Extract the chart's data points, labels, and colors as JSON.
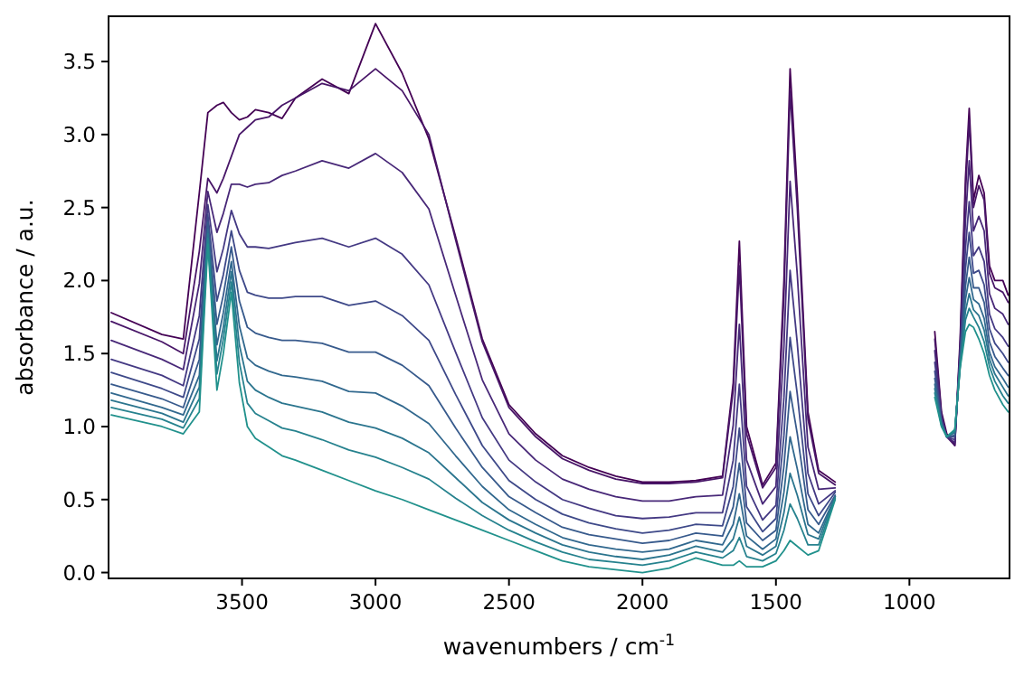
{
  "chart_data": {
    "type": "line",
    "xlabel": "wavenumbers / cm$^{-1}$",
    "ylabel": "absorbance / a.u.",
    "xlim": [
      4000,
      625
    ],
    "ylim": [
      -0.04,
      3.81
    ],
    "xticks": [
      3500,
      3000,
      2500,
      2000,
      1500,
      1000
    ],
    "yticks": [
      {
        "value": 0,
        "label": "0.0"
      },
      {
        "value": 0.5,
        "label": "0.5"
      },
      {
        "value": 1,
        "label": "1.0"
      },
      {
        "value": 1.5,
        "label": "1.5"
      },
      {
        "value": 2,
        "label": "2.0"
      },
      {
        "value": 2.5,
        "label": "2.5"
      },
      {
        "value": 3,
        "label": "3.0"
      },
      {
        "value": 3.5,
        "label": "3.5"
      }
    ],
    "x": [
      3990,
      3800,
      3720,
      3660,
      3628,
      3594,
      3570,
      3540,
      3510,
      3480,
      3450,
      3400,
      3350,
      3300,
      3200,
      3100,
      3000,
      2900,
      2800,
      2700,
      2600,
      2500,
      2400,
      2300,
      2200,
      2100,
      2000,
      1900,
      1800,
      1700,
      1660,
      1637,
      1610,
      1550,
      1500,
      1470,
      1447,
      1420,
      1380,
      1340,
      1278,
      1100,
      905,
      880,
      860,
      830,
      810,
      790,
      776,
      760,
      740,
      720,
      700,
      680,
      650,
      630
    ],
    "series": [
      {
        "color": "#440154",
        "values": [
          1.78,
          1.63,
          1.6,
          2.6,
          3.15,
          3.2,
          3.22,
          3.15,
          3.1,
          3.12,
          3.17,
          3.15,
          3.11,
          3.25,
          3.38,
          3.28,
          3.76,
          3.42,
          2.97,
          2.3,
          1.6,
          1.15,
          0.95,
          0.8,
          0.72,
          0.66,
          0.62,
          0.62,
          0.63,
          0.66,
          1.3,
          2.27,
          1.0,
          0.6,
          0.75,
          2.0,
          3.45,
          2.6,
          1.1,
          0.7,
          0.62,
          null,
          1.65,
          1.1,
          0.95,
          0.87,
          1.6,
          2.7,
          3.18,
          2.55,
          2.72,
          2.6,
          2.1,
          2.0,
          2.0,
          1.9
        ]
      },
      {
        "color": "#481668",
        "values": [
          1.72,
          1.58,
          1.5,
          2.2,
          2.7,
          2.6,
          2.7,
          2.85,
          3.0,
          3.05,
          3.1,
          3.12,
          3.2,
          3.25,
          3.35,
          3.3,
          3.45,
          3.3,
          3.0,
          2.28,
          1.58,
          1.13,
          0.93,
          0.78,
          0.7,
          0.64,
          0.61,
          0.61,
          0.62,
          0.65,
          1.25,
          2.1,
          0.95,
          0.58,
          0.72,
          1.9,
          3.3,
          2.5,
          1.05,
          0.68,
          0.6,
          null,
          1.6,
          1.08,
          0.93,
          0.87,
          1.55,
          2.6,
          3.1,
          2.5,
          2.65,
          2.55,
          2.05,
          1.95,
          1.92,
          1.85
        ]
      },
      {
        "color": "#482878",
        "values": [
          1.59,
          1.46,
          1.39,
          1.98,
          2.61,
          2.33,
          2.46,
          2.66,
          2.66,
          2.64,
          2.66,
          2.67,
          2.72,
          2.75,
          2.82,
          2.77,
          2.87,
          2.74,
          2.49,
          1.9,
          1.32,
          0.95,
          0.77,
          0.64,
          0.57,
          0.52,
          0.49,
          0.49,
          0.52,
          0.53,
          1.01,
          1.7,
          0.77,
          0.47,
          0.59,
          1.55,
          2.68,
          2.04,
          0.86,
          0.57,
          0.58,
          null,
          1.52,
          1.06,
          0.93,
          0.89,
          1.52,
          2.41,
          2.82,
          2.34,
          2.44,
          2.34,
          1.91,
          1.81,
          1.77,
          1.7
        ]
      },
      {
        "color": "#443983",
        "values": [
          1.46,
          1.35,
          1.28,
          1.76,
          2.52,
          2.06,
          2.22,
          2.48,
          2.32,
          2.23,
          2.23,
          2.22,
          2.24,
          2.26,
          2.29,
          2.23,
          2.29,
          2.18,
          1.97,
          1.51,
          1.06,
          0.77,
          0.62,
          0.5,
          0.44,
          0.39,
          0.37,
          0.38,
          0.41,
          0.41,
          0.77,
          1.29,
          0.59,
          0.36,
          0.46,
          1.2,
          2.07,
          1.57,
          0.68,
          0.47,
          0.56,
          null,
          1.44,
          1.05,
          0.93,
          0.91,
          1.49,
          2.22,
          2.54,
          2.17,
          2.23,
          2.13,
          1.77,
          1.67,
          1.61,
          1.55
        ]
      },
      {
        "color": "#3e4989",
        "values": [
          1.37,
          1.26,
          1.2,
          1.6,
          2.45,
          1.86,
          2.04,
          2.34,
          2.07,
          1.92,
          1.9,
          1.88,
          1.88,
          1.89,
          1.89,
          1.83,
          1.86,
          1.76,
          1.59,
          1.22,
          0.87,
          0.63,
          0.5,
          0.4,
          0.34,
          0.3,
          0.27,
          0.29,
          0.33,
          0.32,
          0.59,
          0.99,
          0.45,
          0.28,
          0.37,
          0.94,
          1.61,
          1.22,
          0.54,
          0.39,
          0.55,
          null,
          1.38,
          1.04,
          0.93,
          0.93,
          1.47,
          2.08,
          2.33,
          2.05,
          2.07,
          1.97,
          1.67,
          1.57,
          1.5,
          1.44
        ]
      },
      {
        "color": "#375a8c",
        "values": [
          1.29,
          1.19,
          1.13,
          1.46,
          2.4,
          1.7,
          1.9,
          2.23,
          1.86,
          1.68,
          1.64,
          1.61,
          1.59,
          1.59,
          1.57,
          1.51,
          1.51,
          1.42,
          1.28,
          0.99,
          0.72,
          0.52,
          0.41,
          0.31,
          0.26,
          0.23,
          0.2,
          0.22,
          0.27,
          0.25,
          0.45,
          0.75,
          0.34,
          0.22,
          0.29,
          0.73,
          1.24,
          0.95,
          0.43,
          0.33,
          0.53,
          null,
          1.33,
          1.03,
          0.93,
          0.94,
          1.45,
          1.96,
          2.16,
          1.95,
          1.95,
          1.85,
          1.58,
          1.48,
          1.4,
          1.35
        ]
      },
      {
        "color": "#31688e",
        "values": [
          1.23,
          1.13,
          1.08,
          1.35,
          2.35,
          1.56,
          1.78,
          2.13,
          1.69,
          1.47,
          1.42,
          1.38,
          1.35,
          1.34,
          1.31,
          1.24,
          1.23,
          1.14,
          1.02,
          0.8,
          0.59,
          0.43,
          0.33,
          0.24,
          0.19,
          0.16,
          0.14,
          0.16,
          0.22,
          0.19,
          0.33,
          0.54,
          0.25,
          0.16,
          0.23,
          0.55,
          0.93,
          0.71,
          0.33,
          0.27,
          0.52,
          null,
          1.29,
          1.02,
          0.93,
          0.96,
          1.44,
          1.87,
          2.02,
          1.87,
          1.84,
          1.74,
          1.51,
          1.41,
          1.33,
          1.27
        ]
      },
      {
        "color": "#2b758e",
        "values": [
          1.18,
          1.09,
          1.03,
          1.27,
          2.32,
          1.45,
          1.68,
          2.06,
          1.56,
          1.31,
          1.25,
          1.2,
          1.16,
          1.14,
          1.1,
          1.03,
          0.99,
          0.92,
          0.82,
          0.65,
          0.48,
          0.36,
          0.27,
          0.19,
          0.14,
          0.11,
          0.09,
          0.12,
          0.18,
          0.14,
          0.23,
          0.38,
          0.18,
          0.12,
          0.18,
          0.41,
          0.68,
          0.53,
          0.26,
          0.23,
          0.52,
          null,
          1.26,
          1.01,
          0.93,
          0.96,
          1.42,
          1.79,
          1.91,
          1.8,
          1.76,
          1.66,
          1.46,
          1.36,
          1.27,
          1.21
        ]
      },
      {
        "color": "#26828e",
        "values": [
          1.13,
          1.05,
          0.99,
          1.19,
          2.29,
          1.36,
          1.6,
          1.99,
          1.44,
          1.16,
          1.09,
          1.04,
          0.99,
          0.97,
          0.91,
          0.84,
          0.79,
          0.72,
          0.64,
          0.51,
          0.39,
          0.29,
          0.21,
          0.14,
          0.09,
          0.07,
          0.05,
          0.08,
          0.14,
          0.1,
          0.15,
          0.24,
          0.11,
          0.08,
          0.13,
          0.29,
          0.47,
          0.37,
          0.19,
          0.19,
          0.51,
          null,
          1.23,
          1.01,
          0.93,
          0.97,
          1.41,
          1.73,
          1.81,
          1.75,
          1.68,
          1.58,
          1.41,
          1.31,
          1.21,
          1.16
        ]
      },
      {
        "color": "#21918c",
        "values": [
          1.08,
          1.0,
          0.95,
          1.1,
          2.25,
          1.25,
          1.5,
          1.92,
          1.3,
          1.0,
          0.92,
          0.86,
          0.8,
          0.77,
          0.7,
          0.63,
          0.56,
          0.5,
          0.43,
          0.36,
          0.29,
          0.22,
          0.15,
          0.08,
          0.04,
          0.02,
          0.0,
          0.03,
          0.1,
          0.05,
          0.05,
          0.08,
          0.04,
          0.04,
          0.08,
          0.15,
          0.22,
          0.18,
          0.12,
          0.15,
          0.5,
          null,
          1.2,
          1.0,
          0.93,
          0.98,
          1.4,
          1.65,
          1.7,
          1.68,
          1.6,
          1.5,
          1.35,
          1.25,
          1.15,
          1.1
        ]
      }
    ]
  }
}
